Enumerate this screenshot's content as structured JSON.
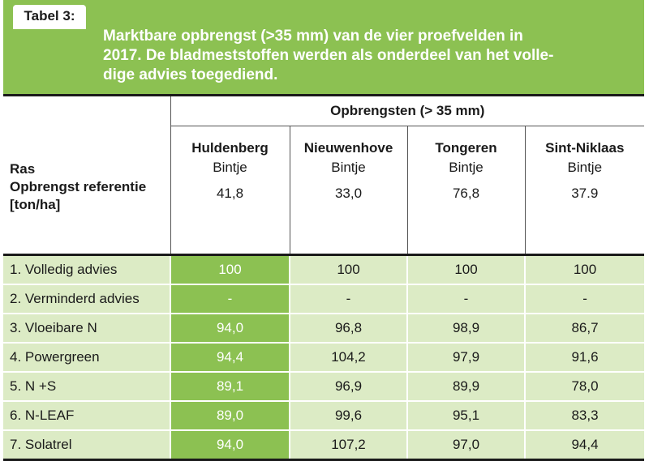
{
  "tab_label": "Tabel 3:",
  "title_lines": [
    "Marktbare opbrengst (>35 mm) van de vier proefvelden in",
    "2017. De bladmeststoffen werden als onderdeel van het volle-",
    "dige advies toegediend."
  ],
  "group_header": "Opbrengsten (> 35 mm)",
  "row_header_lines": [
    "Ras",
    "Opbrengst referentie",
    "[ton/ha]"
  ],
  "locations": [
    {
      "name": "Huldenberg",
      "variety": "Bintje",
      "reference": "41,8"
    },
    {
      "name": "Nieuwenhove",
      "variety": "Bintje",
      "reference": "33,0"
    },
    {
      "name": "Tongeren",
      "variety": "Bintje",
      "reference": "76,8"
    },
    {
      "name": "Sint-Niklaas",
      "variety": "Bintje",
      "reference": "37.9"
    }
  ],
  "rows": [
    {
      "label": "1. Volledig advies",
      "values": [
        "100",
        "100",
        "100",
        "100"
      ]
    },
    {
      "label": "2. Verminderd advies",
      "values": [
        "-",
        "-",
        "-",
        "-"
      ]
    },
    {
      "label": "3. Vloeibare N",
      "values": [
        "94,0",
        "96,8",
        "98,9",
        "86,7"
      ]
    },
    {
      "label": "4. Powergreen",
      "values": [
        "94,4",
        "104,2",
        "97,9",
        "91,6"
      ]
    },
    {
      "label": "5. N +S",
      "values": [
        "89,1",
        "96,9",
        "89,9",
        "78,0"
      ]
    },
    {
      "label": "6. N-LEAF",
      "values": [
        "89,0",
        "99,6",
        "95,1",
        "83,3"
      ]
    },
    {
      "label": "7. Solatrel",
      "values": [
        "94,0",
        "107,2",
        "97,0",
        "94,4"
      ]
    }
  ],
  "colors": {
    "accent_green": "#8cc152",
    "row_fill": "#dcebc5"
  }
}
